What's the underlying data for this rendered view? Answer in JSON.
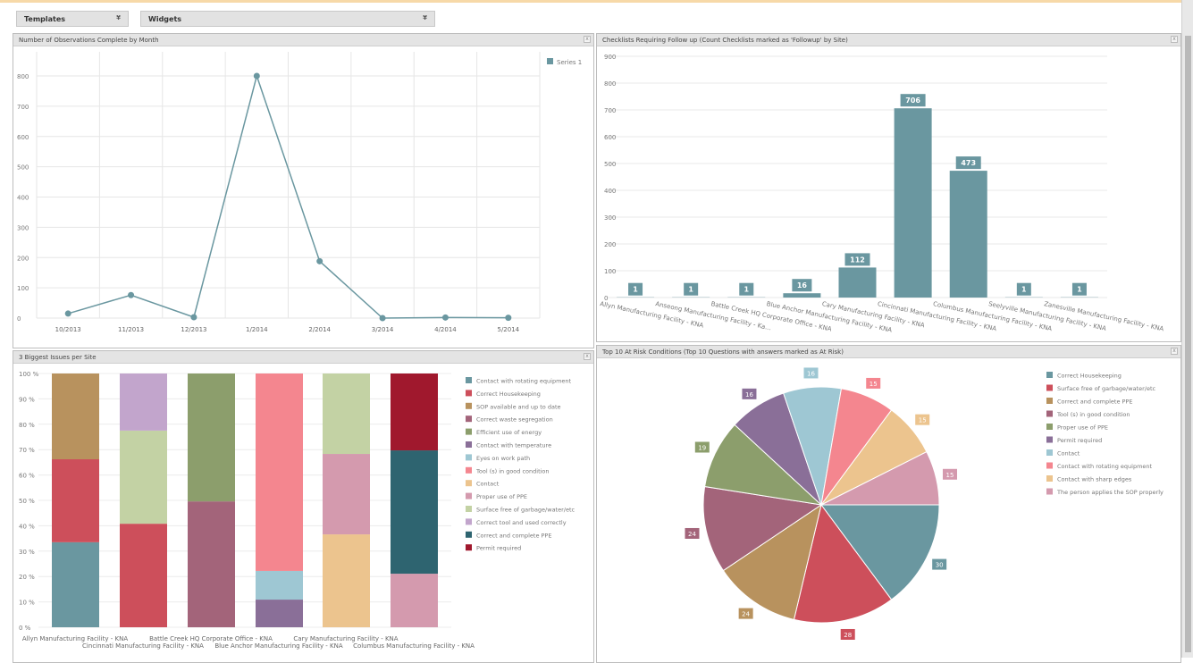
{
  "toolbar": {
    "templates_label": "Templates",
    "widgets_label": "Widgets",
    "dropdown_icon": "double-chevron-down"
  },
  "colors": {
    "teal": "#6a97a0",
    "accent_top": "#f7d9a8"
  },
  "chart_data": [
    {
      "type": "line",
      "title": "Number of Observations Complete by Month",
      "categories": [
        "10/2013",
        "11/2013",
        "12/2013",
        "1/2014",
        "2/2014",
        "3/2014",
        "4/2014",
        "5/2014"
      ],
      "series": [
        {
          "name": "Series 1",
          "values": [
            15,
            76,
            3,
            800,
            188,
            0,
            2,
            1
          ]
        }
      ],
      "ylim": [
        0,
        800
      ],
      "yticks": [
        "0",
        "100",
        "200",
        "300",
        "400",
        "500",
        "600",
        "700",
        "800"
      ],
      "grid": true,
      "legend": "top-right",
      "color": "#6a97a0"
    },
    {
      "type": "bar",
      "title": "Checklists Requiring Follow up (Count Checklists marked as 'Followup' by Site)",
      "categories": [
        "Allyn Manufacturing Facility - KNA",
        "Anseong Manufacturing Facility - Ka...",
        "Battle Creek HQ Corporate Office - KNA",
        "Blue Anchor Manufacturing Facility - KNA",
        "Cary Manufacturing Facility - KNA",
        "Cincinnati Manufacturing Facility - KNA",
        "Columbus Manufacturing Facility - KNA",
        "Seelyville Manufacturing Facility - KNA",
        "Zanesville Manufacturing Facility - KNA"
      ],
      "values": [
        1,
        1,
        1,
        16,
        112,
        706,
        473,
        1,
        1
      ],
      "ylim": [
        0,
        900
      ],
      "yticks": [
        "0",
        "100",
        "200",
        "300",
        "400",
        "500",
        "600",
        "700",
        "800",
        "900"
      ],
      "grid": true,
      "color": "#6a97a0"
    },
    {
      "type": "bar",
      "stacked": true,
      "title": "3 Biggest Issues per Site",
      "categories": [
        "Allyn Manufacturing Facility - KNA",
        "Cincinnati Manufacturing Facility - KNA",
        "Battle Creek HQ Corporate Office - KNA",
        "Blue Anchor Manufacturing Facility - KNA",
        "Cary Manufacturing Facility - KNA",
        "Columbus Manufacturing Facility - KNA"
      ],
      "yticks": [
        "0 %",
        "10 %",
        "20 %",
        "30 %",
        "40 %",
        "50 %",
        "60 %",
        "70 %",
        "80 %",
        "90 %",
        "100 %"
      ],
      "ylim": [
        0,
        100
      ],
      "legend": "right",
      "legend_items": [
        {
          "name": "Contact with rotating equipment",
          "color": "#6a97a0"
        },
        {
          "name": "Correct Housekeeping",
          "color": "#cd4f5b"
        },
        {
          "name": "SOP available and up to date",
          "color": "#b8925e"
        },
        {
          "name": "Correct waste segregation",
          "color": "#a3647a"
        },
        {
          "name": "Efficient use of energy",
          "color": "#8c9e6c"
        },
        {
          "name": "Contact with temperature",
          "color": "#8a6f98"
        },
        {
          "name": "Eyes on work path",
          "color": "#9ec7d3"
        },
        {
          "name": "Tool (s) in good condition",
          "color": "#f4868f"
        },
        {
          "name": "Contact",
          "color": "#ecc48e"
        },
        {
          "name": "Proper use of PPE",
          "color": "#d49aae"
        },
        {
          "name": "Surface free of garbage/water/etc",
          "color": "#c3d2a4"
        },
        {
          "name": "Correct tool and used correctly",
          "color": "#c2a5cc"
        },
        {
          "name": "Correct and complete PPE",
          "color": "#2e6470"
        },
        {
          "name": "Permit required",
          "color": "#a0182d"
        }
      ],
      "stacks": [
        [
          {
            "item": 0,
            "value": 33.5
          },
          {
            "item": 1,
            "value": 32.7
          },
          {
            "item": 2,
            "value": 33.8
          }
        ],
        [
          {
            "item": 1,
            "value": 40.8
          },
          {
            "item": 10,
            "value": 36.7
          },
          {
            "item": 11,
            "value": 22.5
          }
        ],
        [
          {
            "item": 3,
            "value": 49.6
          },
          {
            "item": 4,
            "value": 50.4
          }
        ],
        [
          {
            "item": 5,
            "value": 10.9
          },
          {
            "item": 6,
            "value": 11.3
          },
          {
            "item": 7,
            "value": 77.8
          }
        ],
        [
          {
            "item": 8,
            "value": 36.6
          },
          {
            "item": 9,
            "value": 31.7
          },
          {
            "item": 10,
            "value": 31.7
          }
        ],
        [
          {
            "item": 9,
            "value": 21.1
          },
          {
            "item": 12,
            "value": 48.6
          },
          {
            "item": 13,
            "value": 30.3
          }
        ]
      ]
    },
    {
      "type": "pie",
      "title": "Top 10 At Risk Conditions (Top 10 Questions with answers marked as At Risk)",
      "legend": "right",
      "slices": [
        {
          "name": "Correct Housekeeping",
          "value": 30,
          "color": "#6a97a0"
        },
        {
          "name": "Surface free of garbage/water/etc",
          "value": 28,
          "color": "#cd4f5b"
        },
        {
          "name": "Correct and complete PPE",
          "value": 24,
          "color": "#b8925e"
        },
        {
          "name": "Tool (s) in good condition",
          "value": 24,
          "color": "#a3647a"
        },
        {
          "name": "Proper use of PPE",
          "value": 19,
          "color": "#8c9e6c"
        },
        {
          "name": "Permit required",
          "value": 16,
          "color": "#8a6f98"
        },
        {
          "name": "Contact",
          "value": 16,
          "color": "#9ec7d3"
        },
        {
          "name": "Contact with rotating equipment",
          "value": 15,
          "color": "#f4868f"
        },
        {
          "name": "Contact with sharp edges",
          "value": 15,
          "color": "#ecc48e"
        },
        {
          "name": "The person applies the SOP properly",
          "value": 15,
          "color": "#d49aae"
        }
      ]
    }
  ]
}
